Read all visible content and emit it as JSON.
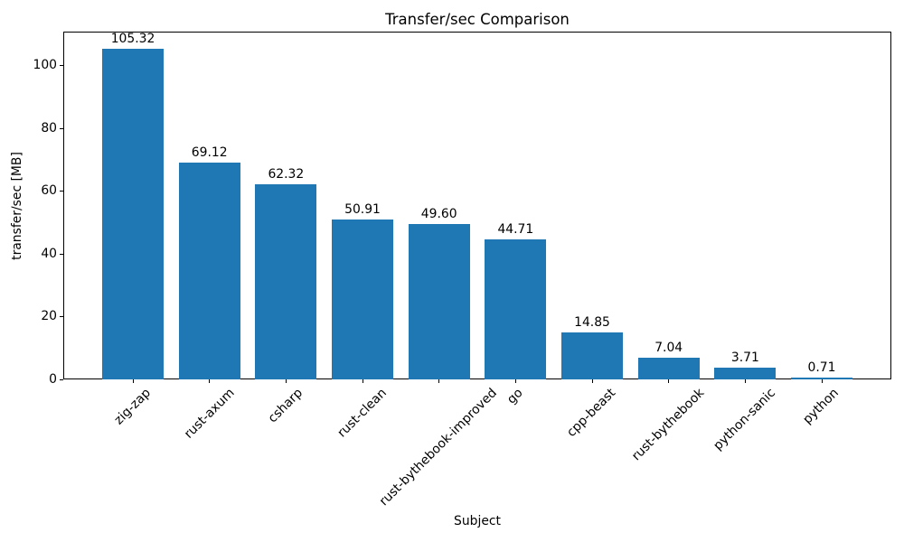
{
  "chart_data": {
    "type": "bar",
    "title": "Transfer/sec Comparison",
    "xlabel": "Subject",
    "ylabel": "transfer/sec [MB]",
    "categories": [
      "zig-zap",
      "rust-axum",
      "csharp",
      "rust-clean",
      "rust-bythebook-improved",
      "go",
      "cpp-beast",
      "rust-bythebook",
      "python-sanic",
      "python"
    ],
    "values": [
      105.32,
      69.12,
      62.32,
      50.91,
      49.6,
      44.71,
      14.85,
      7.04,
      3.71,
      0.71
    ],
    "value_labels": [
      "105.32",
      "69.12",
      "62.32",
      "50.91",
      "49.60",
      "44.71",
      "14.85",
      "7.04",
      "3.71",
      "0.71"
    ],
    "ylim": [
      0,
      110.9
    ],
    "yticks": [
      0,
      20,
      40,
      60,
      80,
      100
    ],
    "bar_color": "#1f77b4",
    "axis_color": "#000000",
    "text_color": "#000000",
    "background_color": "#ffffff",
    "grid": false,
    "legend": null,
    "x_tick_rotation_deg": 45
  }
}
